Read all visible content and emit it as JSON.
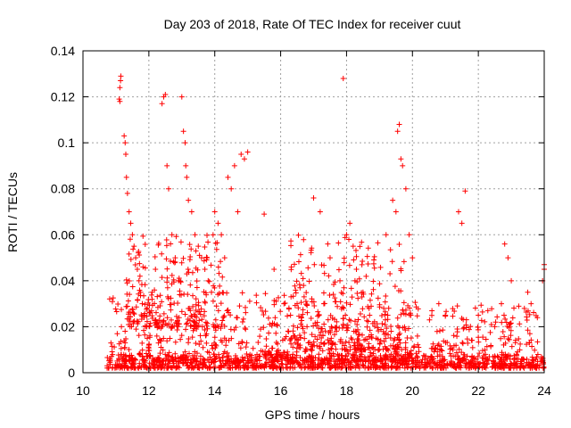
{
  "chart_data": {
    "type": "scatter",
    "title": "Day 203 of 2018, Rate Of TEC Index for receiver cuut",
    "xlabel": "GPS time / hours",
    "ylabel": "ROTI / TECUs",
    "xlim": [
      10,
      24
    ],
    "ylim": [
      0,
      0.14
    ],
    "xticks": [
      10,
      12,
      14,
      16,
      18,
      20,
      22,
      24
    ],
    "yticks": [
      0,
      0.02,
      0.04,
      0.06,
      0.08,
      0.1,
      0.12,
      0.14
    ],
    "ytick_labels": [
      "0",
      "0.02",
      "0.04",
      "0.06",
      "0.08",
      "0.1",
      "0.12",
      "0.14"
    ],
    "grid": true,
    "marker": "+",
    "color": "#ff0000",
    "series": [
      {
        "x": [
          11.1,
          11.12,
          11.14,
          11.15,
          11.12,
          11.25,
          11.28,
          11.3,
          11.32,
          11.35,
          11.4,
          11.45,
          11.5,
          11.55,
          11.6,
          11.65,
          11.7,
          11.75,
          11.8,
          11.85,
          11.9,
          11.95,
          12.0,
          12.1,
          12.2,
          12.4,
          12.45,
          12.5,
          12.55,
          12.6,
          12.7,
          12.8,
          12.9,
          13.0,
          13.05,
          13.1,
          13.12,
          13.15,
          13.2,
          13.3,
          13.4,
          13.5,
          13.6,
          13.7,
          13.8,
          13.9,
          14.0,
          14.1,
          14.2,
          14.3,
          14.4,
          14.5,
          14.6,
          14.7,
          14.8,
          14.9,
          15.0,
          15.5,
          15.8,
          16.1,
          16.3,
          16.5,
          16.8,
          17.0,
          17.2,
          17.5,
          17.8,
          17.9,
          18.0,
          18.1,
          18.2,
          18.3,
          18.5,
          18.7,
          18.9,
          19.2,
          19.4,
          19.5,
          19.55,
          19.6,
          19.65,
          19.7,
          19.8,
          19.9,
          20.0,
          20.8,
          21.0,
          21.4,
          21.5,
          21.6,
          22.0,
          22.5,
          22.7,
          22.8,
          22.9,
          23.0,
          23.5,
          23.6,
          24.0,
          23.95,
          24.0
        ],
        "y": [
          0.119,
          0.124,
          0.127,
          0.129,
          0.118,
          0.103,
          0.1,
          0.095,
          0.085,
          0.078,
          0.07,
          0.065,
          0.06,
          0.055,
          0.05,
          0.045,
          0.04,
          0.035,
          0.03,
          0.025,
          0.02,
          0.015,
          0.012,
          0.035,
          0.045,
          0.117,
          0.12,
          0.121,
          0.09,
          0.08,
          0.06,
          0.05,
          0.04,
          0.12,
          0.105,
          0.1,
          0.09,
          0.085,
          0.075,
          0.07,
          0.06,
          0.055,
          0.05,
          0.045,
          0.04,
          0.035,
          0.07,
          0.065,
          0.06,
          0.05,
          0.085,
          0.08,
          0.09,
          0.07,
          0.095,
          0.093,
          0.096,
          0.069,
          0.045,
          0.03,
          0.025,
          0.03,
          0.02,
          0.076,
          0.07,
          0.05,
          0.04,
          0.128,
          0.06,
          0.065,
          0.055,
          0.045,
          0.035,
          0.025,
          0.015,
          0.06,
          0.075,
          0.07,
          0.105,
          0.108,
          0.093,
          0.09,
          0.08,
          0.06,
          0.05,
          0.03,
          0.025,
          0.07,
          0.065,
          0.079,
          0.025,
          0.02,
          0.03,
          0.056,
          0.05,
          0.04,
          0.035,
          0.03,
          0.045,
          0.04,
          0.047
        ],
        "density_bands": [
          {
            "x": [
              10.7,
              24.0
            ],
            "y": [
              0.002,
              0.008
            ]
          },
          {
            "x": [
              10.8,
              20.2
            ],
            "y": [
              0.005,
              0.035
            ]
          },
          {
            "x": [
              11.3,
              14.3
            ],
            "y": [
              0.02,
              0.06
            ]
          },
          {
            "x": [
              16.3,
              19.8
            ],
            "y": [
              0.01,
              0.06
            ]
          },
          {
            "x": [
              20.5,
              23.8
            ],
            "y": [
              0.003,
              0.03
            ]
          }
        ]
      }
    ]
  }
}
